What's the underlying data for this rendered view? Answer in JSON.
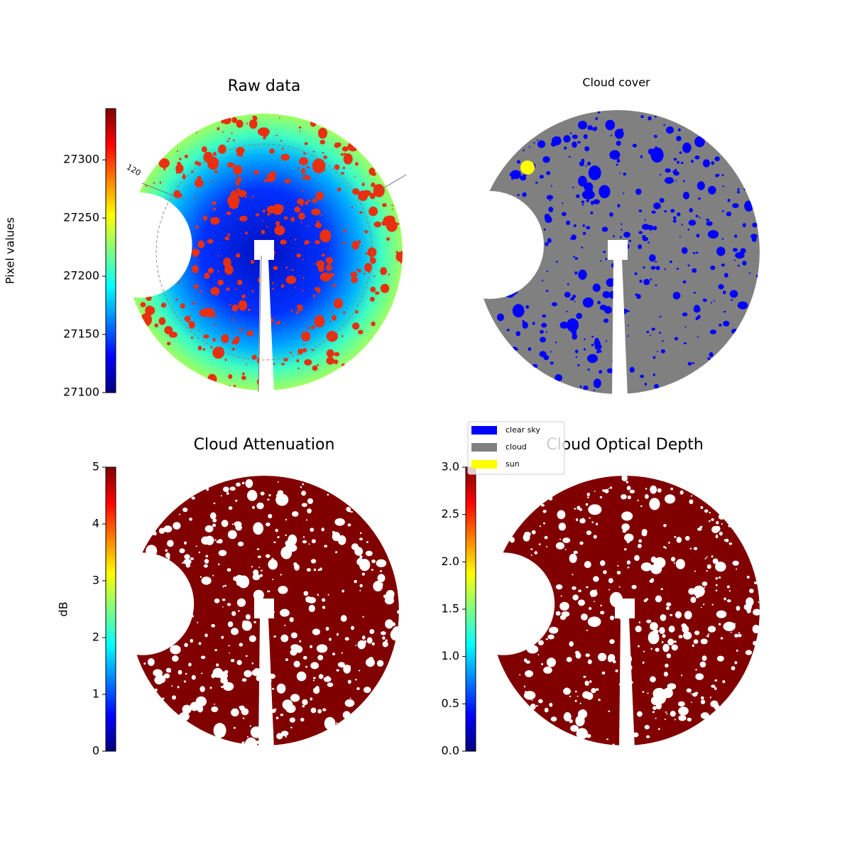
{
  "chart_data": [
    {
      "type": "image",
      "title": "Raw data",
      "annotations": [
        "120"
      ],
      "colorbar": {
        "label": "Pixel values",
        "colormap": "jet",
        "lim": [
          27100,
          27344
        ],
        "ticks": [
          27100,
          27150,
          27200,
          27250,
          27300
        ]
      }
    },
    {
      "type": "image",
      "title": "Cloud cover",
      "legend": {
        "entries": [
          {
            "name": "clear sky",
            "color": "#0000ff"
          },
          {
            "name": "cloud",
            "color": "#808080"
          },
          {
            "name": "sun",
            "color": "#ffff00"
          }
        ]
      }
    },
    {
      "type": "image",
      "title": "Cloud Attenuation",
      "colorbar": {
        "label": "dB",
        "colormap": "jet",
        "lim": [
          0,
          5
        ],
        "ticks": [
          0,
          1,
          2,
          3,
          4,
          5
        ]
      }
    },
    {
      "type": "image",
      "title": "Cloud Optical Depth",
      "colorbar": {
        "colormap": "jet",
        "lim": [
          0,
          3
        ],
        "ticks": [
          {
            "value": 0,
            "label": "0.0"
          },
          {
            "value": 0.5,
            "label": "0.5"
          },
          {
            "value": 1,
            "label": "1.0"
          },
          {
            "value": 1.5,
            "label": "1.5"
          },
          {
            "value": 2,
            "label": "2.0"
          },
          {
            "value": 2.5,
            "label": "2.5"
          },
          {
            "value": 3,
            "label": "3.0"
          }
        ]
      }
    }
  ]
}
